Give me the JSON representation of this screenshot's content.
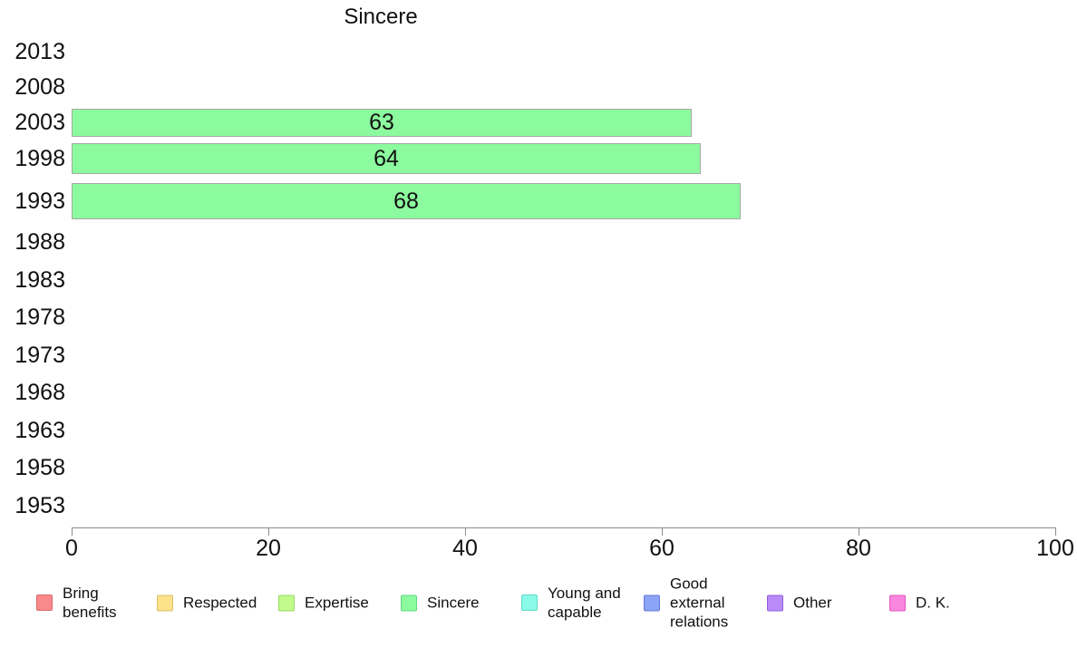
{
  "chart_data": {
    "type": "bar",
    "orientation": "horizontal",
    "title": "Sincere",
    "categories": [
      "2013",
      "2008",
      "2003",
      "1998",
      "1993",
      "1988",
      "1983",
      "1978",
      "1973",
      "1968",
      "1963",
      "1958",
      "1953"
    ],
    "values": [
      null,
      null,
      63,
      64,
      68,
      null,
      null,
      null,
      null,
      null,
      null,
      null,
      null
    ],
    "bar_labels": [
      "",
      "",
      "63",
      "64",
      "68",
      "",
      "",
      "",
      "",
      "",
      "",
      "",
      ""
    ],
    "bar_color": "#8cfa9e",
    "bar_border_color": "#a8a8a8",
    "axis_color": "#8c8c8c",
    "xlim": [
      0,
      100
    ],
    "x_ticks": [
      0,
      20,
      40,
      60,
      80,
      100
    ],
    "grid": false,
    "legend_position": "bottom",
    "legend": [
      {
        "id": "bring-benefits",
        "label": "Bring\nbenefits",
        "color": "#f9898a",
        "border": "#d96a70"
      },
      {
        "id": "respected",
        "label": "Respected",
        "color": "#fbe28b",
        "border": "#d9be66"
      },
      {
        "id": "expertise",
        "label": "Expertise",
        "color": "#c2fb8b",
        "border": "#94d966"
      },
      {
        "id": "sincere",
        "label": "Sincere",
        "color": "#8cfa9e",
        "border": "#5fd981"
      },
      {
        "id": "young-and-capable",
        "label": "Young and\ncapable",
        "color": "#8bfae9",
        "border": "#5fd9c4"
      },
      {
        "id": "good-external-relations",
        "label": "Good\nexternal\nrelations",
        "color": "#8ba4f5",
        "border": "#6678d9"
      },
      {
        "id": "other",
        "label": "Other",
        "color": "#b98bfa",
        "border": "#925fd9"
      },
      {
        "id": "d-k",
        "label": "D. K.",
        "color": "#fb86df",
        "border": "#e255be"
      }
    ]
  }
}
